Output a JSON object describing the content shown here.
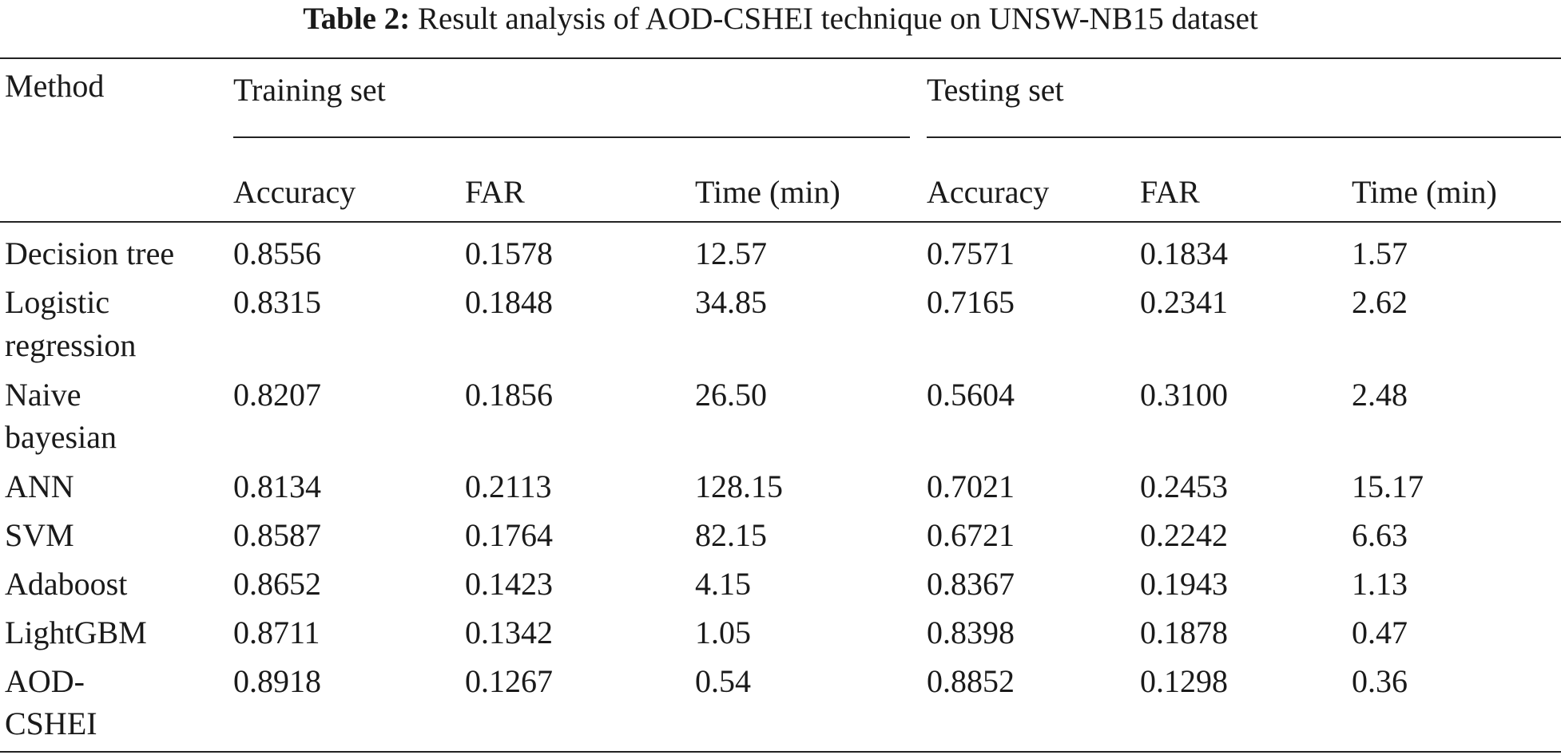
{
  "caption": {
    "label": "Table 2:",
    "text": "Result analysis of AOD-CSHEI technique on UNSW-NB15 dataset"
  },
  "header": {
    "method": "Method",
    "groups": [
      "Training set",
      "Testing set"
    ],
    "columns": [
      "Accuracy",
      "FAR",
      "Time (min)",
      "Accuracy",
      "FAR",
      "Time (min)"
    ]
  },
  "rows": [
    {
      "method": [
        "Decision tree"
      ],
      "values": [
        "0.8556",
        "0.1578",
        "12.57",
        "0.7571",
        "0.1834",
        "1.57"
      ]
    },
    {
      "method": [
        "Logistic",
        "regression"
      ],
      "values": [
        "0.8315",
        "0.1848",
        "34.85",
        "0.7165",
        "0.2341",
        "2.62"
      ]
    },
    {
      "method": [
        "Naive",
        "bayesian"
      ],
      "values": [
        "0.8207",
        "0.1856",
        "26.50",
        "0.5604",
        "0.3100",
        "2.48"
      ]
    },
    {
      "method": [
        "ANN"
      ],
      "values": [
        "0.8134",
        "0.2113",
        "128.15",
        "0.7021",
        "0.2453",
        "15.17"
      ]
    },
    {
      "method": [
        "SVM"
      ],
      "values": [
        "0.8587",
        "0.1764",
        "82.15",
        "0.6721",
        "0.2242",
        "6.63"
      ]
    },
    {
      "method": [
        "Adaboost"
      ],
      "values": [
        "0.8652",
        "0.1423",
        "4.15",
        "0.8367",
        "0.1943",
        "1.13"
      ]
    },
    {
      "method": [
        "LightGBM"
      ],
      "values": [
        "0.8711",
        "0.1342",
        "1.05",
        "0.8398",
        "0.1878",
        "0.47"
      ]
    },
    {
      "method": [
        "AOD-",
        "CSHEI"
      ],
      "values": [
        "0.8918",
        "0.1267",
        "0.54",
        "0.8852",
        "0.1298",
        "0.36"
      ]
    }
  ]
}
